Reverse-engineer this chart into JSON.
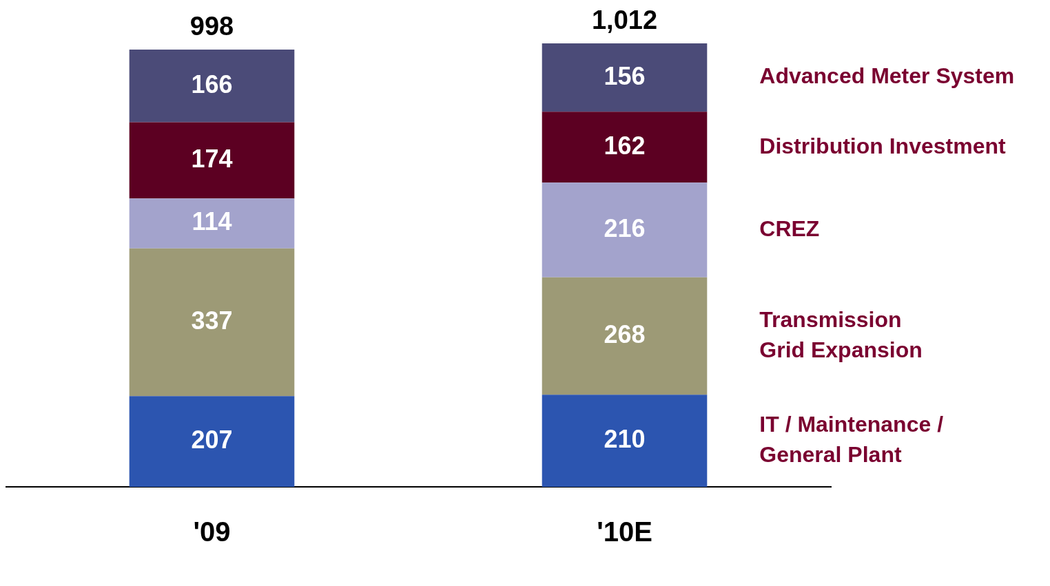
{
  "chart_data": {
    "type": "bar",
    "stacked": true,
    "data_labels": true,
    "categories": [
      "'09",
      "'10E"
    ],
    "series": [
      {
        "name": "IT / Maintenance /\nGeneral Plant",
        "color": "#2c55b0",
        "values": [
          207,
          210
        ]
      },
      {
        "name": "Transmission\nGrid Expansion",
        "color": "#9d9a76",
        "values": [
          337,
          268
        ]
      },
      {
        "name": "CREZ",
        "color": "#a3a3cc",
        "values": [
          114,
          216
        ]
      },
      {
        "name": "Distribution Investment",
        "color": "#5c0022",
        "values": [
          174,
          162
        ]
      },
      {
        "name": "Advanced Meter System",
        "color": "#4b4b78",
        "values": [
          166,
          156
        ]
      }
    ],
    "totals": [
      "998",
      "1,012"
    ]
  }
}
